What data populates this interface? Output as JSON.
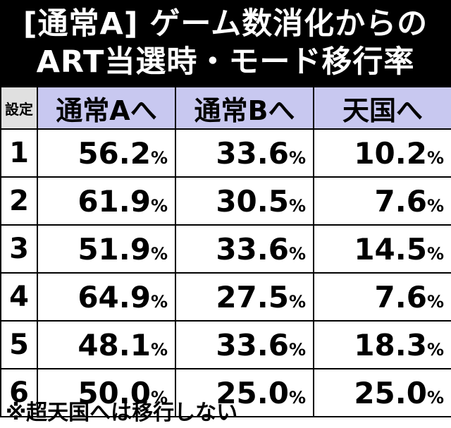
{
  "title": {
    "line1": "[通常A] ゲーム数消化からの",
    "line2": "ART当選時・モード移行率"
  },
  "table": {
    "headers": [
      "設定",
      "通常Aへ",
      "通常Bへ",
      "天国へ"
    ],
    "percent_sign": "%",
    "rows": [
      {
        "setting": "1",
        "a": "56.2",
        "b": "33.6",
        "heaven": "10.2"
      },
      {
        "setting": "2",
        "a": "61.9",
        "b": "30.5",
        "heaven": "7.6"
      },
      {
        "setting": "3",
        "a": "51.9",
        "b": "33.6",
        "heaven": "14.5"
      },
      {
        "setting": "4",
        "a": "64.9",
        "b": "27.5",
        "heaven": "7.6"
      },
      {
        "setting": "5",
        "a": "48.1",
        "b": "33.6",
        "heaven": "18.3"
      },
      {
        "setting": "6",
        "a": "50.0",
        "b": "25.0",
        "heaven": "25.0"
      }
    ]
  },
  "note": "※超天国へは移行しない",
  "colors": {
    "header_bg": "#c8c8f0",
    "title_bg": "#000000",
    "setting_header_bg": "#e0e0e0"
  }
}
